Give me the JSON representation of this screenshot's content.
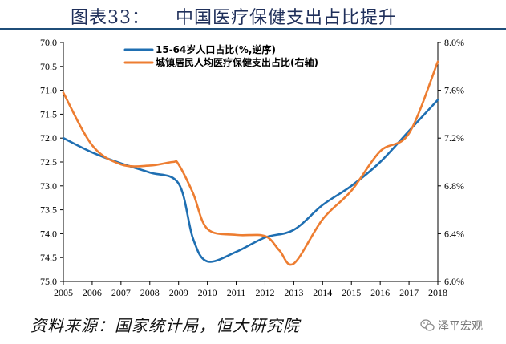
{
  "page": {
    "title": "图表33：    中国医疗保健支出占比提升",
    "source": "资料来源：国家统计局，恒大研究院",
    "watermark": "泽平宏观"
  },
  "colors": {
    "series1": "#1f6fb2",
    "series2": "#ed7d31",
    "header_rule": "#1f4e79"
  },
  "chart_data": {
    "type": "line",
    "x": [
      2005,
      2006,
      2007,
      2008,
      2009,
      2010,
      2011,
      2012,
      2013,
      2014,
      2015,
      2016,
      2017,
      2018
    ],
    "x_tick_labels": [
      "2005",
      "2006",
      "2007",
      "2008",
      "2009",
      "2010",
      "2011",
      "2012",
      "2013",
      "2014",
      "2015",
      "2016",
      "2017",
      "2018"
    ],
    "y_left": {
      "range": [
        75.0,
        70.0
      ],
      "inverted": true,
      "tick_labels": [
        "70.0",
        "70.5",
        "71.0",
        "71.5",
        "72.0",
        "72.5",
        "73.0",
        "73.5",
        "74.0",
        "74.5",
        "75.0"
      ]
    },
    "y_right": {
      "range": [
        6.0,
        8.0
      ],
      "tick_labels": [
        "8.0%",
        "7.6%",
        "7.2%",
        "6.8%",
        "6.4%",
        "6.0%"
      ]
    },
    "legend_position": "top-left",
    "series": [
      {
        "name": "15-64岁人口占比(%,逆序)",
        "axis": "left",
        "color": "#1f6fb2",
        "points": [
          [
            2005,
            72.0
          ],
          [
            2006,
            72.3
          ],
          [
            2007,
            72.53
          ],
          [
            2008,
            72.72
          ],
          [
            2009,
            72.95
          ],
          [
            2009.5,
            74.1
          ],
          [
            2010,
            74.58
          ],
          [
            2011,
            74.38
          ],
          [
            2012,
            74.08
          ],
          [
            2013,
            73.92
          ],
          [
            2014,
            73.4
          ],
          [
            2015,
            73.0
          ],
          [
            2016,
            72.5
          ],
          [
            2017,
            71.85
          ],
          [
            2018,
            71.2
          ]
        ]
      },
      {
        "name": "城镇居民人均医疗保健支出占比(右轴)",
        "axis": "right",
        "color": "#ed7d31",
        "points": [
          [
            2005,
            7.58
          ],
          [
            2006,
            7.14
          ],
          [
            2007,
            6.98
          ],
          [
            2008,
            6.97
          ],
          [
            2008.8,
            7.0
          ],
          [
            2009,
            6.98
          ],
          [
            2009.5,
            6.74
          ],
          [
            2010,
            6.44
          ],
          [
            2011,
            6.39
          ],
          [
            2012,
            6.38
          ],
          [
            2012.5,
            6.26
          ],
          [
            2013,
            6.15
          ],
          [
            2014,
            6.52
          ],
          [
            2015,
            6.76
          ],
          [
            2016,
            7.09
          ],
          [
            2017,
            7.24
          ],
          [
            2018,
            7.84
          ]
        ]
      }
    ]
  }
}
